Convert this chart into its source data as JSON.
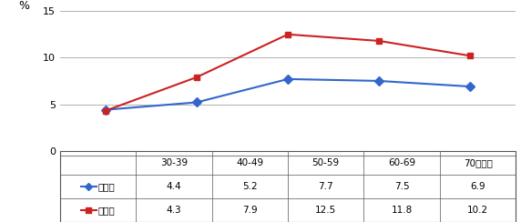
{
  "categories": [
    "30-39",
    "40-49",
    "50-59",
    "60-69",
    "70세이상"
  ],
  "series1_label": "맞춤형",
  "series1_values": [
    4.4,
    5.2,
    7.7,
    7.5,
    6.9
  ],
  "series1_color": "#3366CC",
  "series1_marker": "D",
  "series2_label": "국건영",
  "series2_values": [
    4.3,
    7.9,
    12.5,
    11.8,
    10.2
  ],
  "series2_color": "#CC2222",
  "series2_marker": "s",
  "ylabel": "%",
  "ylim_chart": [
    -0.5,
    15
  ],
  "yticks_chart": [
    0,
    5,
    10,
    15
  ],
  "background_color": "#ffffff",
  "grid_color": "#b0b0b0",
  "table_row1": [
    "4.4",
    "5.2",
    "7.7",
    "7.5",
    "6.9"
  ],
  "table_row2": [
    "4.3",
    "7.9",
    "12.5",
    "11.8",
    "10.2"
  ]
}
